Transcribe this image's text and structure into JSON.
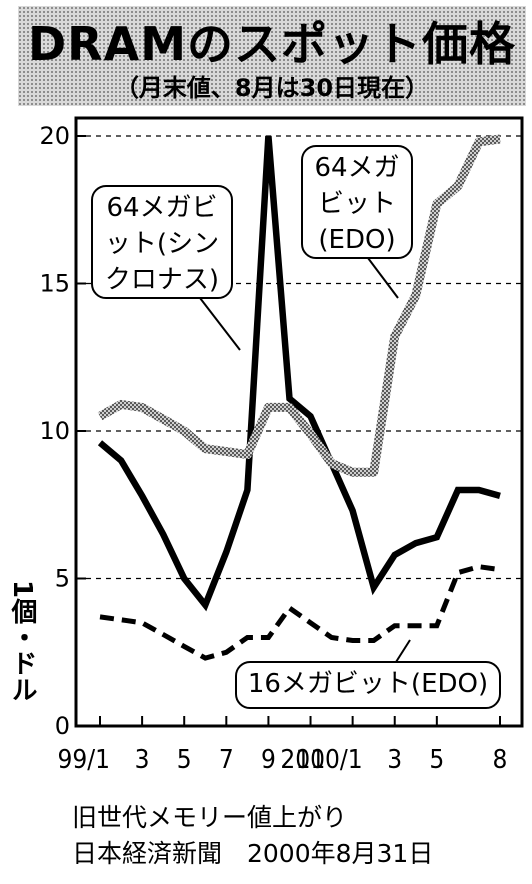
{
  "title": "DRAMのスポット価格",
  "subtitle": "（月末値、8月は30日現在）",
  "unit_label": "1個・ドル",
  "caption": {
    "line1": "旧世代メモリー値上がり",
    "line2": "日本経済新聞　2000年8月31日"
  },
  "chart_data": {
    "type": "line",
    "title": "DRAMのスポット価格",
    "subtitle": "（月末値、8月は30日現在）",
    "ylabel": "1個・ドル",
    "ylim": [
      0,
      20
    ],
    "y_ticks": [
      "0",
      "5",
      "10",
      "15",
      "20"
    ],
    "x_ticks": [
      "99/1",
      "3",
      "5",
      "7",
      "9",
      "11",
      "2000/1",
      "3",
      "5",
      "8"
    ],
    "x": [
      "1999-01",
      "1999-02",
      "1999-03",
      "1999-04",
      "1999-05",
      "1999-06",
      "1999-07",
      "1999-08",
      "1999-09",
      "1999-10",
      "1999-11",
      "1999-12",
      "2000-01",
      "2000-02",
      "2000-03",
      "2000-04",
      "2000-05",
      "2000-06",
      "2000-07",
      "2000-08"
    ],
    "series": [
      {
        "name": "64メガビット(シンクロナス)",
        "style": "solid",
        "color": "#000000",
        "values": [
          9.6,
          9.0,
          7.8,
          6.5,
          5.0,
          4.1,
          5.9,
          8.0,
          20.0,
          11.1,
          10.5,
          8.9,
          7.3,
          4.7,
          5.8,
          6.2,
          6.4,
          8.0,
          8.0,
          7.8
        ]
      },
      {
        "name": "64メガビット(EDO)",
        "style": "gray-hatched",
        "color": "#8a8a8a",
        "values": [
          10.5,
          10.9,
          10.8,
          10.4,
          10.0,
          9.4,
          9.3,
          9.2,
          10.8,
          10.8,
          9.9,
          8.9,
          8.6,
          8.6,
          13.2,
          14.6,
          17.7,
          18.3,
          19.8,
          19.9
        ]
      },
      {
        "name": "16メガビット(EDO)",
        "style": "dashed",
        "color": "#000000",
        "values": [
          3.7,
          3.6,
          3.5,
          3.1,
          2.7,
          2.3,
          2.5,
          3.0,
          3.0,
          4.0,
          3.5,
          3.0,
          2.9,
          2.9,
          3.4,
          3.4,
          3.4,
          5.2,
          5.4,
          5.3
        ]
      }
    ],
    "annotations": [
      {
        "series": 0,
        "lines": [
          "64メガビ",
          "ット(シン",
          "クロナス)"
        ]
      },
      {
        "series": 1,
        "lines": [
          "64メガ",
          "ビット",
          "(EDO)"
        ]
      },
      {
        "series": 2,
        "lines": [
          "16メガビット(EDO)"
        ]
      }
    ],
    "grid": "dashed-horizontal"
  }
}
